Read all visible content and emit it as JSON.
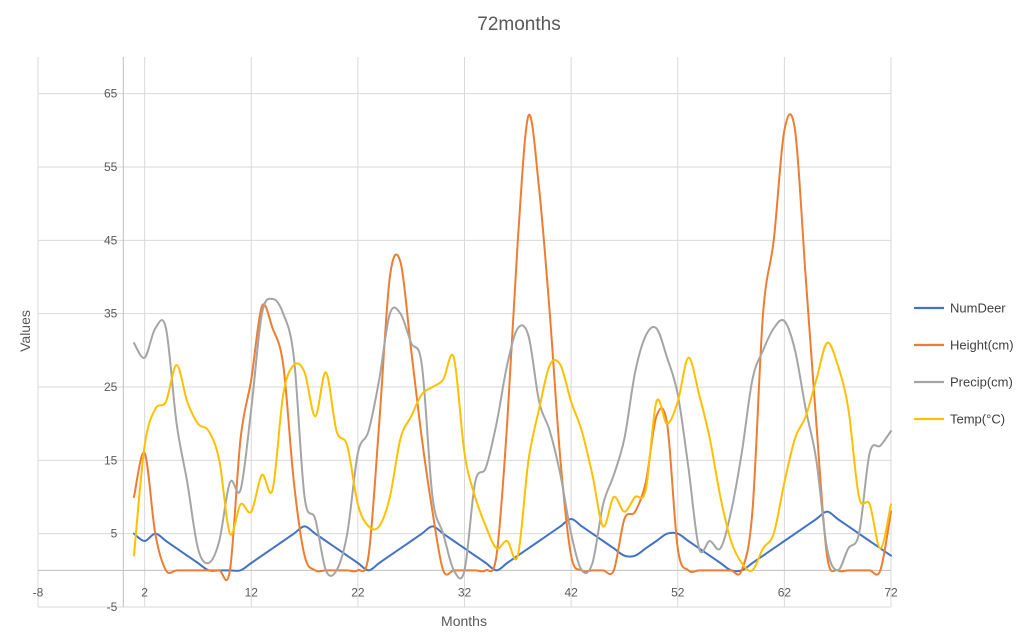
{
  "chart_data": {
    "type": "line",
    "title": "72months",
    "xlabel": "Months",
    "ylabel": "Values",
    "xlim": [
      -8,
      72
    ],
    "ylim": [
      -5,
      70
    ],
    "xticks": [
      -8,
      2,
      12,
      22,
      32,
      42,
      52,
      62,
      72
    ],
    "yticks": [
      -5,
      5,
      15,
      25,
      35,
      45,
      55,
      65
    ],
    "grid": true,
    "legend_position": "right",
    "series": [
      {
        "name": "NumDeer",
        "color": "#4472C4",
        "x": [
          1,
          2,
          3,
          4,
          5,
          6,
          7,
          8,
          9,
          10,
          11,
          12,
          13,
          14,
          15,
          16,
          17,
          18,
          19,
          20,
          21,
          22,
          23,
          24,
          25,
          26,
          27,
          28,
          29,
          30,
          31,
          32,
          33,
          34,
          35,
          36,
          37,
          38,
          39,
          40,
          41,
          42,
          43,
          44,
          45,
          46,
          47,
          48,
          49,
          50,
          51,
          52,
          53,
          54,
          55,
          56,
          57,
          58,
          59,
          60,
          61,
          62,
          63,
          64,
          65,
          66,
          67,
          68,
          69,
          70,
          71,
          72
        ],
        "y": [
          5,
          4,
          5,
          4,
          3,
          2,
          1,
          0,
          0,
          0,
          0,
          1,
          2,
          3,
          4,
          5,
          6,
          5,
          4,
          3,
          2,
          1,
          0,
          1,
          2,
          3,
          4,
          5,
          6,
          5,
          4,
          3,
          2,
          1,
          0,
          1,
          2,
          3,
          4,
          5,
          6,
          7,
          6,
          5,
          4,
          3,
          2,
          2,
          3,
          4,
          5,
          5,
          4,
          3,
          2,
          1,
          0,
          0,
          1,
          2,
          3,
          4,
          5,
          6,
          7,
          8,
          7,
          6,
          5,
          4,
          3,
          2
        ]
      },
      {
        "name": "Height(cm)",
        "color": "#ED7D31",
        "x": [
          1,
          2,
          3,
          4,
          5,
          6,
          7,
          8,
          9,
          10,
          11,
          12,
          13,
          14,
          15,
          16,
          17,
          18,
          19,
          20,
          21,
          22,
          23,
          24,
          25,
          26,
          27,
          28,
          29,
          30,
          31,
          32,
          33,
          34,
          35,
          36,
          37,
          38,
          39,
          40,
          41,
          42,
          43,
          44,
          45,
          46,
          47,
          48,
          49,
          50,
          51,
          52,
          53,
          54,
          55,
          56,
          57,
          58,
          59,
          60,
          61,
          62,
          63,
          64,
          65,
          66,
          67,
          68,
          69,
          70,
          71,
          72
        ],
        "y": [
          10,
          16,
          5,
          0,
          0,
          0,
          0,
          0,
          0,
          0,
          18,
          26,
          36,
          33,
          28,
          12,
          2,
          0,
          0,
          0,
          0,
          0,
          2,
          20,
          40,
          42,
          30,
          18,
          8,
          0,
          0,
          0,
          0,
          0,
          2,
          20,
          45,
          62,
          52,
          35,
          15,
          2,
          0,
          0,
          0,
          0,
          7,
          8,
          12,
          21,
          20,
          3,
          0,
          0,
          0,
          0,
          0,
          0,
          8,
          35,
          45,
          60,
          60,
          40,
          20,
          2,
          0,
          0,
          0,
          0,
          0,
          8
        ]
      },
      {
        "name": "Precip(cm)",
        "color": "#A5A5A5",
        "x": [
          1,
          2,
          3,
          4,
          5,
          6,
          7,
          8,
          9,
          10,
          11,
          12,
          13,
          14,
          15,
          16,
          17,
          18,
          19,
          20,
          21,
          22,
          23,
          24,
          25,
          26,
          27,
          28,
          29,
          30,
          31,
          32,
          33,
          34,
          35,
          36,
          37,
          38,
          39,
          40,
          41,
          42,
          43,
          44,
          45,
          46,
          47,
          48,
          49,
          50,
          51,
          52,
          53,
          54,
          55,
          56,
          57,
          58,
          59,
          60,
          61,
          62,
          63,
          64,
          65,
          66,
          67,
          68,
          69,
          70,
          71,
          72
        ],
        "y": [
          31,
          29,
          33,
          33,
          20,
          12,
          3,
          1,
          4,
          12,
          11,
          22,
          35,
          37,
          35,
          29,
          10,
          7,
          0,
          0,
          5,
          16,
          19,
          26,
          35,
          35,
          31,
          28,
          10,
          5,
          0,
          0,
          12,
          14,
          20,
          28,
          33,
          32,
          23,
          19,
          13,
          5,
          0,
          1,
          9,
          13,
          18,
          27,
          32,
          33,
          29,
          24,
          14,
          3,
          4,
          3,
          8,
          16,
          26,
          30,
          33,
          34,
          30,
          22,
          15,
          3,
          0,
          3,
          5,
          16,
          17,
          19
        ]
      },
      {
        "name": "Temp(°C)",
        "color": "#FFC000",
        "x": [
          1,
          2,
          3,
          4,
          5,
          6,
          7,
          8,
          9,
          10,
          11,
          12,
          13,
          14,
          15,
          16,
          17,
          18,
          19,
          20,
          21,
          22,
          23,
          24,
          25,
          26,
          27,
          28,
          29,
          30,
          31,
          32,
          33,
          34,
          35,
          36,
          37,
          38,
          39,
          40,
          41,
          42,
          43,
          44,
          45,
          46,
          47,
          48,
          49,
          50,
          51,
          52,
          53,
          54,
          55,
          56,
          57,
          58,
          59,
          60,
          61,
          62,
          63,
          64,
          65,
          66,
          67,
          68,
          69,
          70,
          71,
          72
        ],
        "y": [
          2,
          17,
          22,
          23,
          28,
          23,
          20,
          19,
          15,
          5,
          9,
          8,
          13,
          11,
          24,
          28,
          27,
          21,
          27,
          19,
          17,
          9,
          6,
          6,
          10,
          18,
          21,
          24,
          25,
          26,
          29,
          16,
          10,
          6,
          3,
          4,
          2,
          15,
          22,
          28,
          28,
          23,
          19,
          13,
          6,
          10,
          8,
          10,
          11,
          23,
          20,
          23,
          29,
          24,
          18,
          10,
          4,
          1,
          0,
          3,
          5,
          12,
          18,
          21,
          26,
          31,
          28,
          22,
          10,
          9,
          3,
          9
        ]
      }
    ]
  }
}
